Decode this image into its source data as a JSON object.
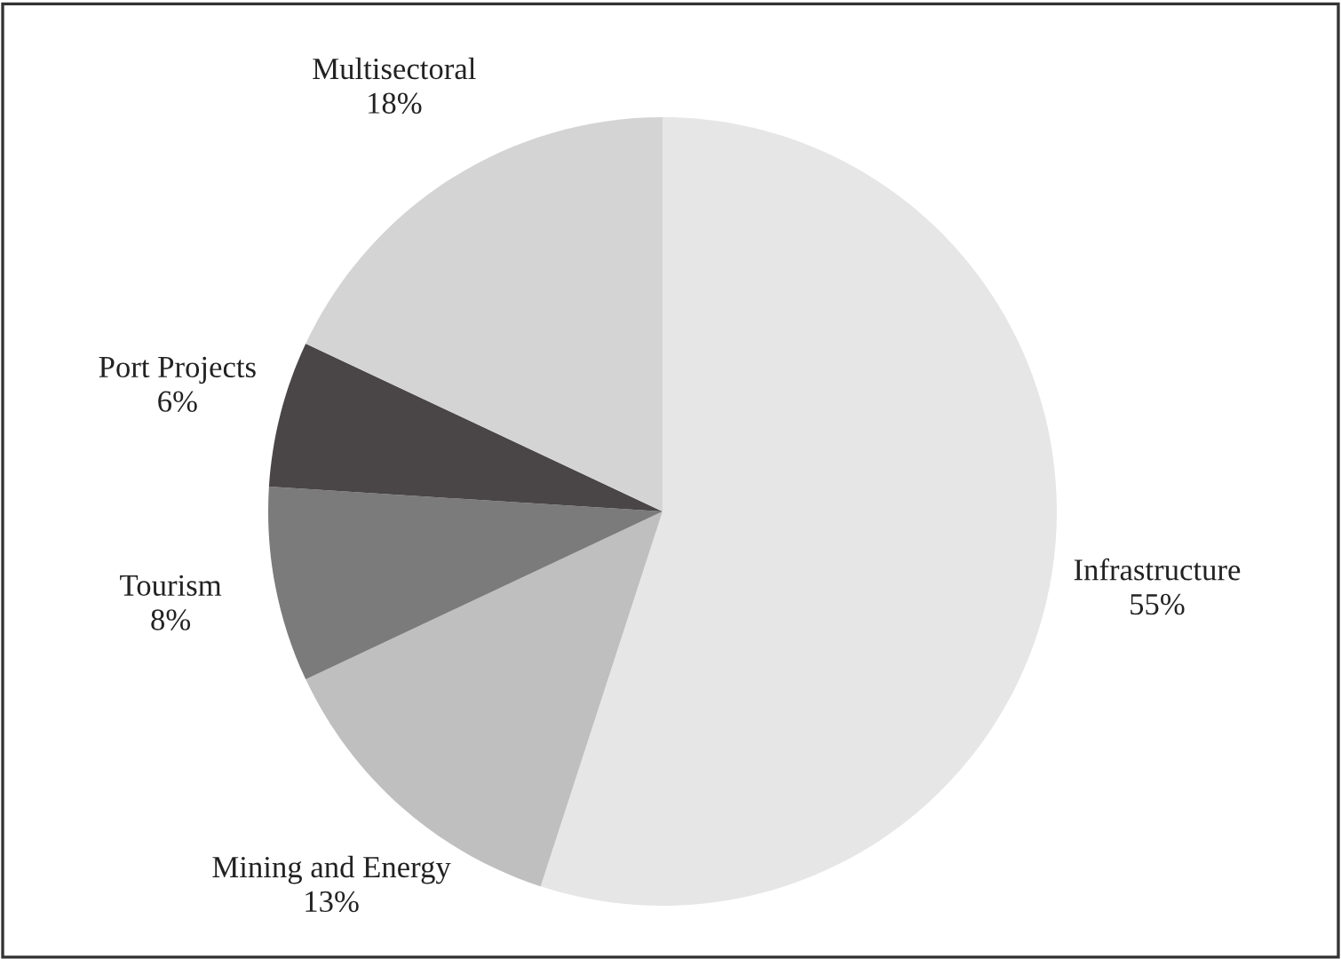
{
  "chart_data": {
    "type": "pie",
    "categories": [
      "Infrastructure",
      "Mining and Energy",
      "Tourism",
      "Port Projects",
      "Multisectoral"
    ],
    "values": [
      55,
      13,
      8,
      6,
      18
    ],
    "colors": [
      "#e6e6e6",
      "#bfbfbf",
      "#7b7b7b",
      "#4a4647",
      "#d4d4d4"
    ],
    "value_labels": [
      "55%",
      "13%",
      "8%",
      "6%",
      "18%"
    ]
  }
}
